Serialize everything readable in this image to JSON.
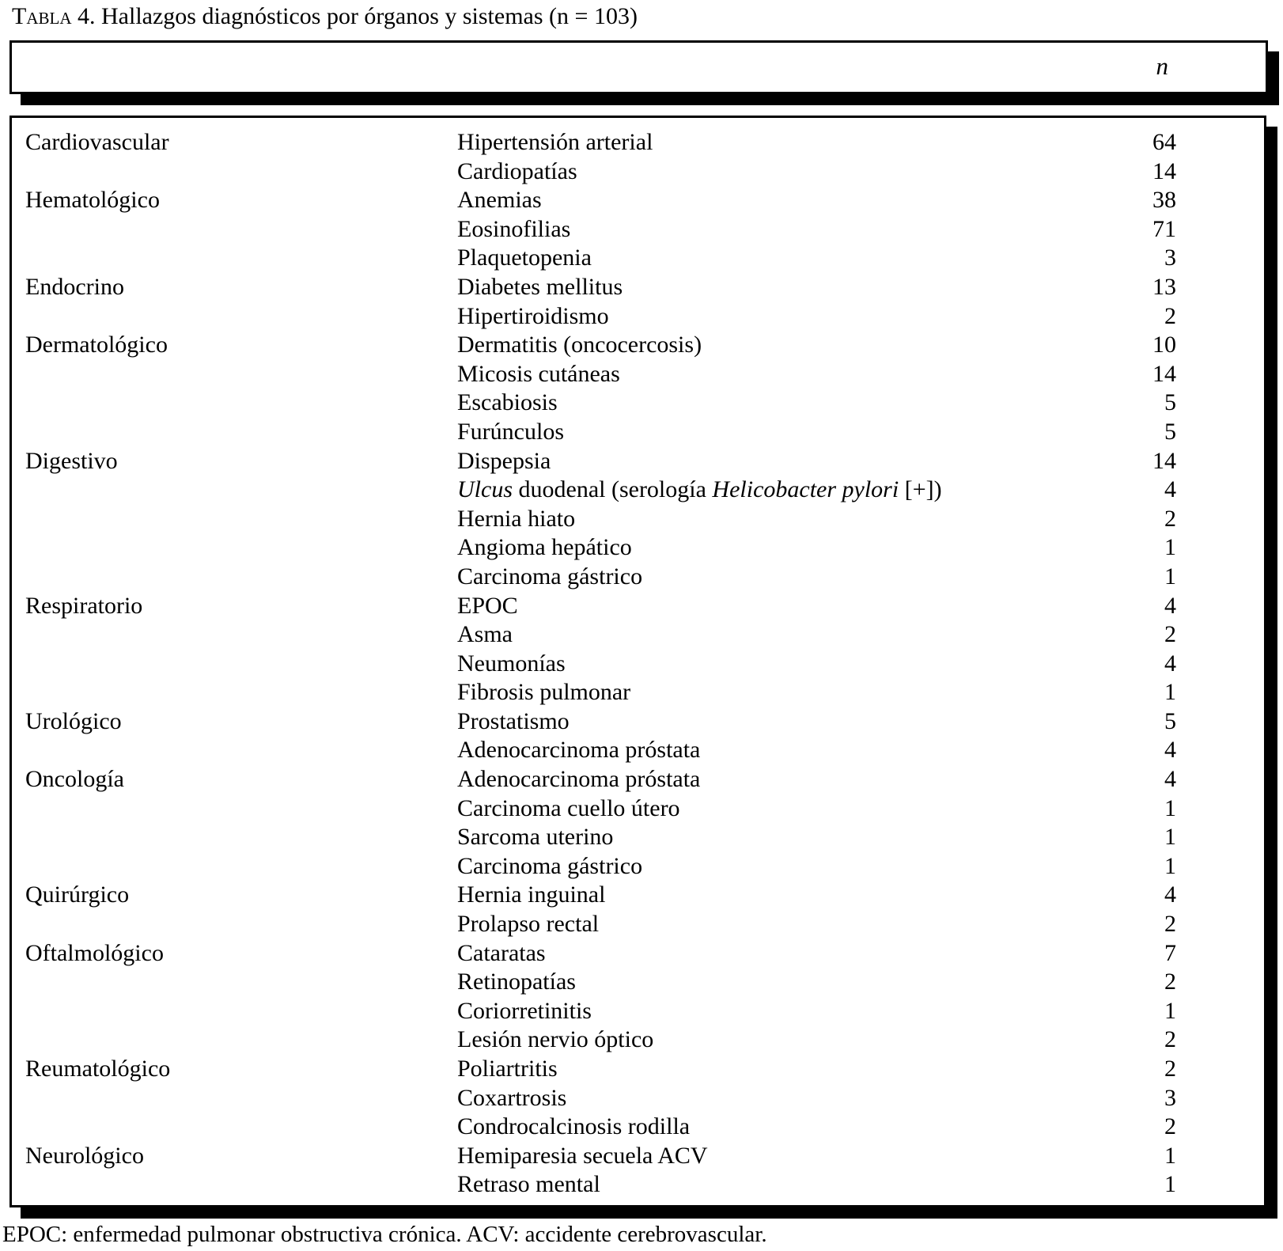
{
  "title": {
    "prefix": "Tabla",
    "rest": " 4. Hallazgos diagnósticos por órganos y sistemas (n = 103)"
  },
  "header": {
    "count_label": "n"
  },
  "colors": {
    "text": "#000000",
    "background": "#ffffff",
    "border": "#000000"
  },
  "groups": [
    {
      "system": "Cardiovascular",
      "findings": [
        {
          "label": "Hipertensión arterial",
          "n": 64
        },
        {
          "label": "Cardiopatías",
          "n": 14
        }
      ]
    },
    {
      "system": "Hematológico",
      "findings": [
        {
          "label": "Anemias",
          "n": 38
        },
        {
          "label": "Eosinofilias",
          "n": 71
        },
        {
          "label": "Plaquetopenia",
          "n": 3
        }
      ]
    },
    {
      "system": "Endocrino",
      "findings": [
        {
          "label": "Diabetes mellitus",
          "n": 13
        },
        {
          "label": "Hipertiroidismo",
          "n": 2
        }
      ]
    },
    {
      "system": "Dermatológico",
      "findings": [
        {
          "label": "Dermatitis (oncocercosis)",
          "n": 10
        },
        {
          "label": "Micosis cutáneas",
          "n": 14
        },
        {
          "label": "Escabiosis",
          "n": 5
        },
        {
          "label": "Furúnculos",
          "n": 5
        }
      ]
    },
    {
      "system": "Digestivo",
      "findings": [
        {
          "label": "Dispepsia",
          "n": 14
        },
        {
          "parts": [
            {
              "text": "Ulcus",
              "italic": true
            },
            {
              "text": " duodenal (serología ",
              "italic": false
            },
            {
              "text": "Helicobacter pylori",
              "italic": true
            },
            {
              "text": " [+])",
              "italic": false
            }
          ],
          "n": 4
        },
        {
          "label": "Hernia hiato",
          "n": 2
        },
        {
          "label": "Angioma hepático",
          "n": 1
        },
        {
          "label": "Carcinoma gástrico",
          "n": 1
        }
      ]
    },
    {
      "system": "Respiratorio",
      "findings": [
        {
          "label": "EPOC",
          "n": 4
        },
        {
          "label": "Asma",
          "n": 2
        },
        {
          "label": "Neumonías",
          "n": 4
        },
        {
          "label": "Fibrosis pulmonar",
          "n": 1
        }
      ]
    },
    {
      "system": "Urológico",
      "findings": [
        {
          "label": "Prostatismo",
          "n": 5
        },
        {
          "label": "Adenocarcinoma próstata",
          "n": 4
        }
      ]
    },
    {
      "system": "Oncología",
      "findings": [
        {
          "label": "Adenocarcinoma próstata",
          "n": 4
        },
        {
          "label": "Carcinoma cuello útero",
          "n": 1
        },
        {
          "label": "Sarcoma uterino",
          "n": 1
        },
        {
          "label": "Carcinoma gástrico",
          "n": 1
        }
      ]
    },
    {
      "system": "Quirúrgico",
      "findings": [
        {
          "label": "Hernia inguinal",
          "n": 4
        },
        {
          "label": "Prolapso rectal",
          "n": 2
        }
      ]
    },
    {
      "system": "Oftalmológico",
      "findings": [
        {
          "label": "Cataratas",
          "n": 7
        },
        {
          "label": "Retinopatías",
          "n": 2
        },
        {
          "label": "Coriorretinitis",
          "n": 1
        },
        {
          "label": "Lesión nervio óptico",
          "n": 2
        }
      ]
    },
    {
      "system": "Reumatológico",
      "findings": [
        {
          "label": "Poliartritis",
          "n": 2
        },
        {
          "label": "Coxartrosis",
          "n": 3
        },
        {
          "label": "Condrocalcinosis rodilla",
          "n": 2
        }
      ]
    },
    {
      "system": "Neurológico",
      "findings": [
        {
          "label": "Hemiparesia secuela ACV",
          "n": 1
        },
        {
          "label": "Retraso mental",
          "n": 1
        }
      ]
    }
  ],
  "footnote": "EPOC: enfermedad pulmonar obstructiva crónica. ACV: accidente cerebrovascular."
}
